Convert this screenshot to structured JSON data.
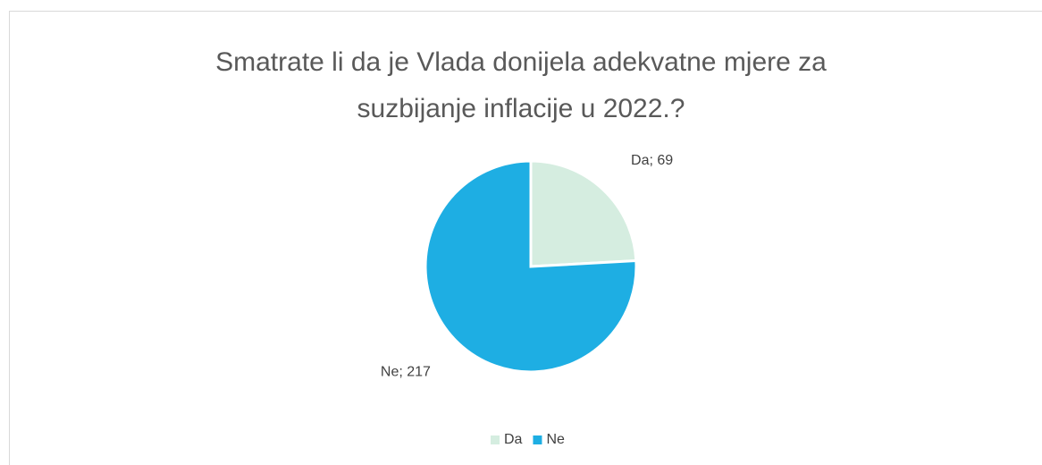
{
  "chart_data": {
    "type": "pie",
    "title": "Smatrate li da je Vlada donijela adekvatne mjere za suzbijanje inflacije u 2022.?",
    "categories": [
      "Da",
      "Ne"
    ],
    "values": [
      69,
      217
    ],
    "value_labels": [
      "Da; 69",
      "Ne; 217"
    ],
    "colors": [
      "#d5ede0",
      "#1eaee3"
    ],
    "legend": "bottom"
  }
}
